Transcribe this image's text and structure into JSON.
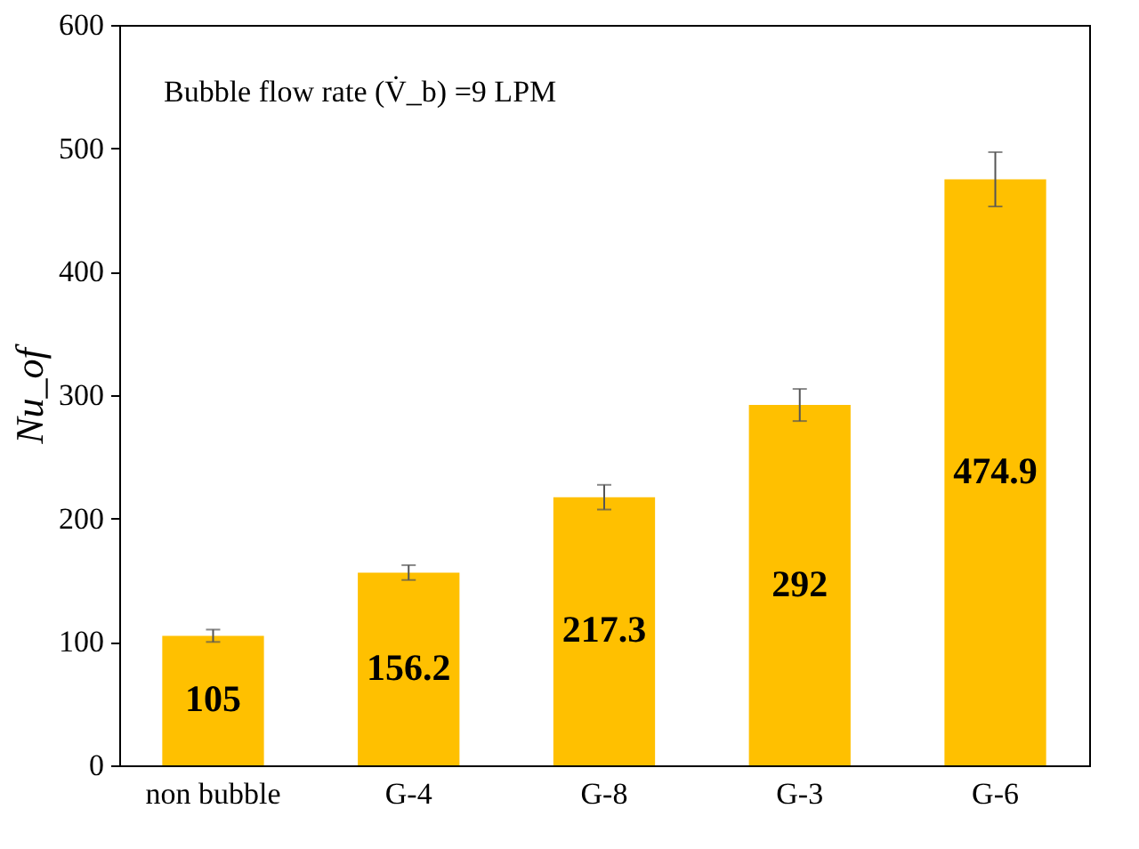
{
  "chart_data": {
    "type": "bar",
    "categories": [
      "non bubble",
      "G-4",
      "G-8",
      "G-3",
      "G-6"
    ],
    "values": [
      105,
      156.2,
      217.3,
      292,
      474.9
    ],
    "errors": [
      5,
      6,
      10,
      13,
      22
    ],
    "color": "#ffc000",
    "ylabel": "Nu_of",
    "annotations": [
      "Bubble flow rate (V̇_b) =9 LPM"
    ],
    "ylim": [
      0,
      600
    ],
    "yticks": [
      0,
      100,
      200,
      300,
      400,
      500,
      600
    ],
    "data_labels": true,
    "grid": false
  }
}
